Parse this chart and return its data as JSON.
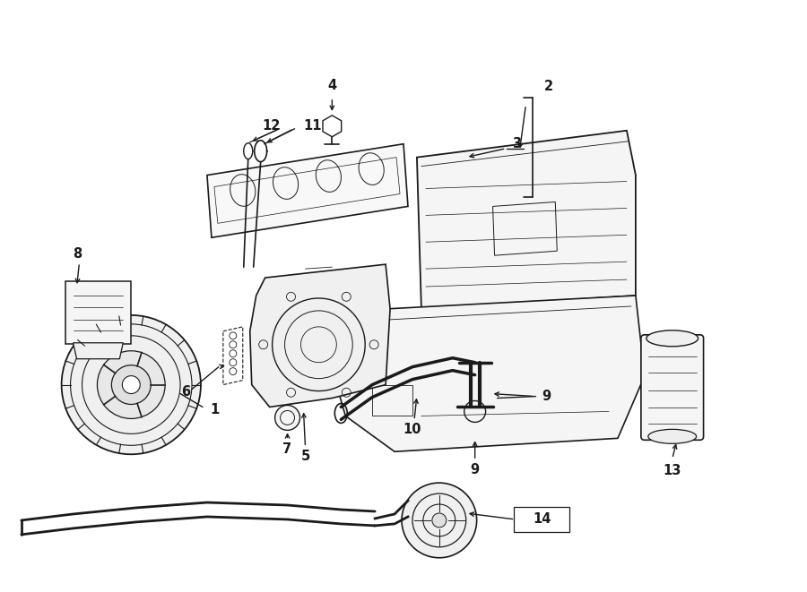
{
  "bg_color": "#ffffff",
  "line_color": "#1a1a1a",
  "text_color": "#1a1a1a",
  "label_fontsize": 10.5,
  "figsize": [
    9.0,
    6.61
  ],
  "dpi": 100
}
